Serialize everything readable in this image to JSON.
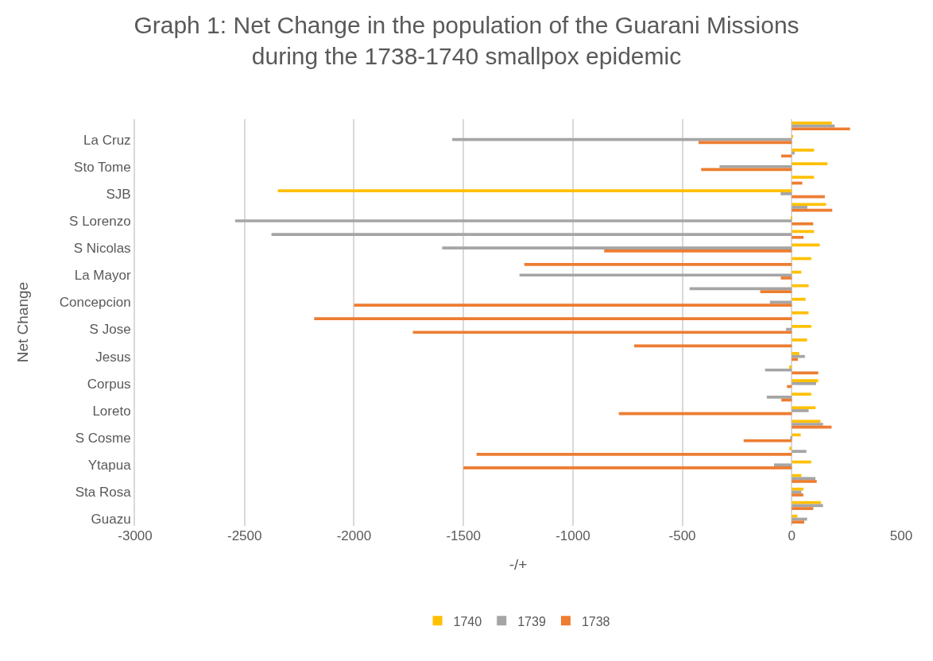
{
  "chart_data": {
    "type": "bar",
    "orientation": "horizontal",
    "title": "Graph 1: Net Change in the population of the Guarani Missions during the 1738-1740 smallpox epidemic",
    "xlabel": "-/+",
    "ylabel": "Net Change",
    "categories": [
      null,
      "La Cruz",
      null,
      "Sto Tome",
      null,
      "SJB",
      null,
      "S Lorenzo",
      null,
      "S Nicolas",
      null,
      "La Mayor",
      null,
      "Concepcion",
      null,
      "S Jose",
      null,
      "Jesus",
      null,
      "Corpus",
      null,
      "Loreto",
      null,
      "S Cosme",
      null,
      "Ytapua",
      null,
      "Sta Rosa",
      null,
      "Guazu"
    ],
    "series": [
      {
        "name": "1740",
        "color": "#ffc000",
        "values": [
          183,
          5,
          102,
          163,
          102,
          -2348,
          157,
          -3,
          102,
          128,
          89,
          44,
          77,
          63,
          77,
          89,
          70,
          34,
          -12,
          121,
          89,
          109,
          131,
          41,
          -12,
          89,
          44,
          53,
          134,
          26
        ]
      },
      {
        "name": "1739",
        "color": "#a5a5a5",
        "values": [
          196,
          -1551,
          13,
          -330,
          0,
          -51,
          71,
          -2543,
          -2377,
          -1597,
          0,
          -1244,
          -467,
          -100,
          0,
          -26,
          0,
          60,
          -122,
          111,
          -114,
          77,
          143,
          -7,
          67,
          -81,
          108,
          44,
          143,
          70
        ]
      },
      {
        "name": "1738",
        "color": "#ed7d31",
        "values": [
          266,
          -426,
          -48,
          -414,
          48,
          151,
          185,
          98,
          54,
          -857,
          -1222,
          -50,
          -144,
          -2000,
          -2182,
          -1731,
          -720,
          28,
          121,
          -22,
          -48,
          -790,
          182,
          -220,
          -1440,
          -1500,
          114,
          53,
          98,
          57
        ]
      }
    ],
    "xlim": [
      -3000,
      500
    ],
    "xticks": [
      -3000,
      -2500,
      -2000,
      -1500,
      -1000,
      -500,
      0,
      500
    ],
    "grid": "x",
    "legend": "bottom"
  }
}
